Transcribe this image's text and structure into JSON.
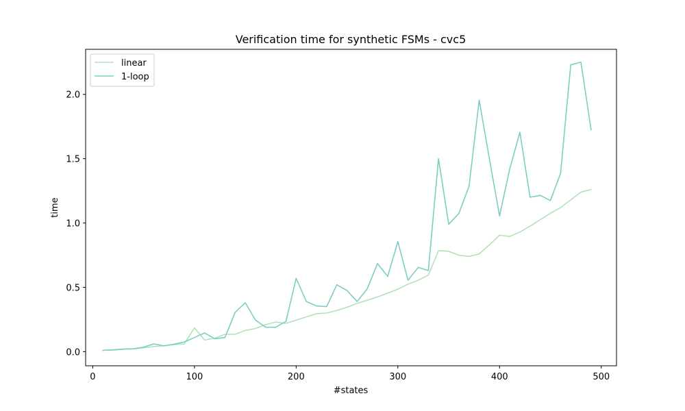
{
  "chart_data": {
    "type": "line",
    "title": "Verification time for synthetic FSMs - cvc5",
    "xlabel": "#states",
    "ylabel": "time",
    "xlim": [
      -7,
      515
    ],
    "ylim": [
      -0.11,
      2.35
    ],
    "xticks": [
      0,
      100,
      200,
      300,
      400,
      500
    ],
    "xtick_labels": [
      "0",
      "100",
      "200",
      "300",
      "400",
      "500"
    ],
    "yticks": [
      0.0,
      0.5,
      1.0,
      1.5,
      2.0
    ],
    "ytick_labels": [
      "0.0",
      "0.5",
      "1.0",
      "1.5",
      "2.0"
    ],
    "grid": false,
    "legend_position": "top-left",
    "x": [
      10,
      20,
      30,
      40,
      50,
      60,
      70,
      80,
      90,
      100,
      110,
      120,
      130,
      140,
      150,
      160,
      170,
      180,
      190,
      200,
      210,
      220,
      230,
      240,
      250,
      260,
      270,
      280,
      290,
      300,
      310,
      320,
      330,
      340,
      350,
      360,
      370,
      380,
      390,
      400,
      410,
      420,
      430,
      440,
      450,
      460,
      470,
      480,
      490
    ],
    "series": [
      {
        "name": "linear",
        "color": "#b2e2b8",
        "values": [
          0.01,
          0.012,
          0.018,
          0.022,
          0.03,
          0.04,
          0.045,
          0.055,
          0.06,
          0.185,
          0.09,
          0.105,
          0.135,
          0.135,
          0.165,
          0.18,
          0.21,
          0.23,
          0.22,
          0.245,
          0.27,
          0.295,
          0.3,
          0.32,
          0.345,
          0.375,
          0.4,
          0.425,
          0.455,
          0.485,
          0.525,
          0.555,
          0.595,
          0.785,
          0.78,
          0.75,
          0.74,
          0.76,
          0.83,
          0.905,
          0.895,
          0.93,
          0.975,
          1.025,
          1.075,
          1.12,
          1.18,
          1.24,
          1.26
        ]
      },
      {
        "name": "1-loop",
        "color": "#7ccdc4",
        "values": [
          0.01,
          0.014,
          0.02,
          0.022,
          0.035,
          0.06,
          0.045,
          0.058,
          0.075,
          0.11,
          0.145,
          0.1,
          0.11,
          0.305,
          0.38,
          0.245,
          0.19,
          0.19,
          0.235,
          0.57,
          0.39,
          0.355,
          0.35,
          0.52,
          0.475,
          0.39,
          0.49,
          0.685,
          0.585,
          0.855,
          0.555,
          0.655,
          0.63,
          1.5,
          0.99,
          1.075,
          1.285,
          1.955,
          1.5,
          1.055,
          1.42,
          1.705,
          1.2,
          1.215,
          1.175,
          1.385,
          2.23,
          2.25,
          1.725
        ]
      }
    ]
  }
}
